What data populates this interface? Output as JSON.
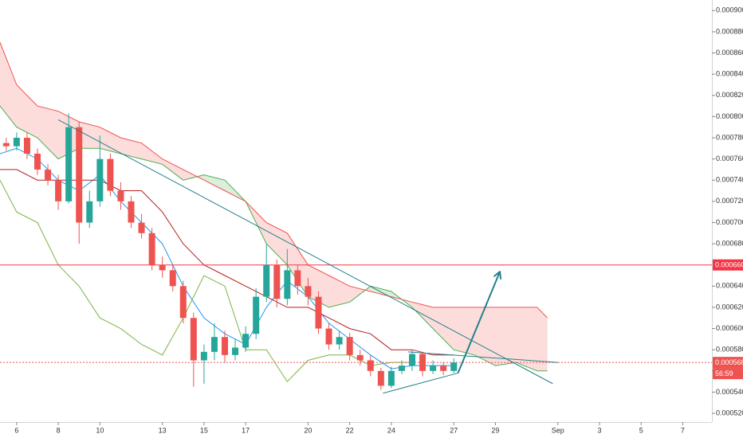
{
  "chart_data": {
    "type": "candlestick",
    "up_color": "#26a69a",
    "down_color": "#ef5350",
    "xlim": [
      5.2,
      39.4
    ],
    "xticks": [
      6,
      8,
      10,
      13,
      15,
      17,
      20,
      22,
      24,
      27,
      29,
      {
        "value": 32,
        "label": "Sep"
      },
      {
        "value": 34,
        "label": "3"
      },
      {
        "value": 36,
        "label": "5"
      },
      {
        "value": 38,
        "label": "7"
      }
    ],
    "ylim": [
      0.000514,
      0.00091
    ],
    "yticks": [
      {
        "value": 0.00052,
        "label": "0.000520"
      },
      {
        "value": 0.00054,
        "label": "0.000540"
      },
      {
        "value": 0.00056,
        "label": "0.000560"
      },
      {
        "value": 0.00058,
        "label": "0.000580"
      },
      {
        "value": 0.0006,
        "label": "0.000600"
      },
      {
        "value": 0.00062,
        "label": "0.000620"
      },
      {
        "value": 0.00064,
        "label": "0.000640"
      },
      {
        "value": 0.00068,
        "label": "0.000680"
      },
      {
        "value": 0.0007,
        "label": "0.000700"
      },
      {
        "value": 0.00072,
        "label": "0.000720"
      },
      {
        "value": 0.00074,
        "label": "0.000740"
      },
      {
        "value": 0.00076,
        "label": "0.000760"
      },
      {
        "value": 0.00078,
        "label": "0.000780"
      },
      {
        "value": 0.0008,
        "label": "0.000800"
      },
      {
        "value": 0.00082,
        "label": "0.000820"
      },
      {
        "value": 0.00084,
        "label": "0.000840"
      },
      {
        "value": 0.00086,
        "label": "0.000860"
      },
      {
        "value": 0.00088,
        "label": "0.000880"
      },
      {
        "value": 0.0009,
        "label": "0.000900"
      }
    ],
    "grid": false,
    "candles": {
      "x": [
        5.5,
        6,
        6.5,
        7,
        7.5,
        8,
        8.5,
        9,
        9.5,
        10,
        10.5,
        11,
        11.5,
        12,
        12.5,
        13,
        13.5,
        14,
        14.5,
        15,
        15.5,
        16,
        16.5,
        17,
        17.5,
        18,
        18.5,
        19,
        19.5,
        20,
        20.5,
        21,
        21.5,
        22,
        22.5,
        23,
        23.5,
        24,
        24.5,
        25,
        25.5,
        26,
        26.5,
        27
      ],
      "open": [
        0.000775,
        0.000772,
        0.00078,
        0.000765,
        0.00075,
        0.00074,
        0.00072,
        0.00079,
        0.0007,
        0.00072,
        0.00076,
        0.00073,
        0.00072,
        0.0007,
        0.00069,
        0.00066,
        0.000655,
        0.00064,
        0.00061,
        0.00057,
        0.000578,
        0.000592,
        0.000575,
        0.000582,
        0.000595,
        0.00063,
        0.00066,
        0.000628,
        0.000655,
        0.00064,
        0.00063,
        0.0006,
        0.000585,
        0.000592,
        0.000575,
        0.00057,
        0.00056,
        0.000546,
        0.00056,
        0.000565,
        0.000576,
        0.00056,
        0.000565,
        0.00056
      ],
      "high": [
        0.00078,
        0.000785,
        0.000785,
        0.00077,
        0.000755,
        0.000745,
        0.000803,
        0.000795,
        0.00073,
        0.000782,
        0.000765,
        0.000738,
        0.000725,
        0.000708,
        0.000695,
        0.000668,
        0.00066,
        0.000645,
        0.000615,
        0.000585,
        0.000605,
        0.000598,
        0.00059,
        0.000602,
        0.000638,
        0.00068,
        0.000665,
        0.000675,
        0.00066,
        0.000648,
        0.000635,
        0.000605,
        0.000598,
        0.000596,
        0.00058,
        0.000575,
        0.000563,
        0.000564,
        0.00057,
        0.00058,
        0.000578,
        0.00057,
        0.000568,
        0.000572
      ],
      "low": [
        0.000768,
        0.000768,
        0.00076,
        0.000745,
        0.000735,
        0.000712,
        0.000718,
        0.00068,
        0.000695,
        0.000715,
        0.000725,
        0.000712,
        0.000695,
        0.000685,
        0.000655,
        0.000648,
        0.000635,
        0.000605,
        0.000545,
        0.000548,
        0.00057,
        0.000568,
        0.00057,
        0.000578,
        0.00059,
        0.000625,
        0.00062,
        0.000622,
        0.000632,
        0.000622,
        0.000595,
        0.00058,
        0.00058,
        0.00057,
        0.000565,
        0.000555,
        0.000542,
        0.000544,
        0.000557,
        0.00056,
        0.000555,
        0.000557,
        0.000556,
        0.000558
      ],
      "close": [
        0.000772,
        0.00078,
        0.000765,
        0.00075,
        0.00074,
        0.00072,
        0.00079,
        0.0007,
        0.00072,
        0.00076,
        0.00073,
        0.00072,
        0.0007,
        0.00069,
        0.00066,
        0.000655,
        0.00064,
        0.00061,
        0.00057,
        0.000578,
        0.000592,
        0.000575,
        0.000582,
        0.000595,
        0.00063,
        0.00066,
        0.000628,
        0.000655,
        0.00064,
        0.00063,
        0.0006,
        0.000585,
        0.000592,
        0.000575,
        0.00057,
        0.00056,
        0.000546,
        0.00056,
        0.000565,
        0.000576,
        0.00056,
        0.000565,
        0.00056,
        0.000568
      ]
    },
    "cloud": {
      "x": [
        5.2,
        6,
        7,
        8,
        9,
        10,
        11,
        12,
        13,
        14,
        15,
        16,
        17,
        18,
        19,
        20,
        21,
        22,
        23,
        24,
        25,
        26,
        27,
        28,
        29,
        30,
        31,
        31.5
      ],
      "span_a": [
        0.00081,
        0.00079,
        0.00078,
        0.00076,
        0.00077,
        0.00077,
        0.000765,
        0.00076,
        0.000755,
        0.00074,
        0.000745,
        0.00074,
        0.00072,
        0.00068,
        0.00066,
        0.00063,
        0.00062,
        0.000625,
        0.00064,
        0.000635,
        0.00062,
        0.0006,
        0.00058,
        0.000575,
        0.000565,
        0.000568,
        0.00056,
        0.00056
      ],
      "span_b": [
        0.00087,
        0.00083,
        0.00081,
        0.000805,
        0.000795,
        0.00079,
        0.00078,
        0.000775,
        0.00076,
        0.00075,
        0.00074,
        0.00073,
        0.00072,
        0.0007,
        0.00069,
        0.00066,
        0.00065,
        0.00064,
        0.000635,
        0.00063,
        0.000625,
        0.00062,
        0.00062,
        0.00062,
        0.00062,
        0.00062,
        0.00062,
        0.00061
      ],
      "color_a": "#4caf50",
      "color_b": "#ef5350"
    },
    "series": [
      {
        "color": "#2196f3",
        "x": [
          5.2,
          6,
          7,
          8,
          9,
          10,
          11,
          12,
          13,
          14,
          15,
          16,
          17,
          18,
          19,
          20,
          21,
          22,
          23,
          24,
          25,
          26,
          27
        ],
        "values": [
          0.000765,
          0.00077,
          0.00076,
          0.00074,
          0.00073,
          0.000745,
          0.00072,
          0.0007,
          0.00068,
          0.00064,
          0.00061,
          0.000595,
          0.000585,
          0.00062,
          0.000645,
          0.00063,
          0.000605,
          0.00059,
          0.000575,
          0.000562,
          0.000565,
          0.000565,
          0.000565
        ]
      },
      {
        "color": "#b71c1c",
        "x": [
          5.2,
          6,
          7,
          8,
          9,
          10,
          11,
          12,
          13,
          14,
          15,
          16,
          17,
          18,
          19,
          20,
          21,
          22,
          23,
          24,
          25,
          26,
          27
        ],
        "values": [
          0.00075,
          0.00075,
          0.00074,
          0.00074,
          0.00074,
          0.00074,
          0.00073,
          0.00073,
          0.00071,
          0.00068,
          0.00066,
          0.00065,
          0.00064,
          0.00063,
          0.00062,
          0.00062,
          0.00061,
          0.0006,
          0.000595,
          0.00058,
          0.00058,
          0.000575,
          0.000575
        ]
      },
      {
        "color": "#7cb342",
        "x": [
          5.2,
          6,
          7,
          8,
          9,
          10,
          11,
          12,
          13,
          14,
          15,
          16,
          17,
          18,
          19,
          20,
          21,
          22,
          23,
          24,
          25
        ],
        "values": [
          0.00074,
          0.00071,
          0.0007,
          0.00066,
          0.00064,
          0.00061,
          0.0006,
          0.000585,
          0.000575,
          0.00061,
          0.00065,
          0.00064,
          0.00058,
          0.00058,
          0.00055,
          0.00057,
          0.000575,
          0.000575,
          0.000565,
          0.000568,
          0.000568
        ]
      }
    ],
    "drawings": [
      {
        "color": "#26808a",
        "x": [
          8,
          31.75
        ],
        "values": [
          0.000797,
          0.000548
        ]
      },
      {
        "color": "#26808a",
        "x": [
          23.6,
          27.2
        ],
        "values": [
          0.000539,
          0.000558
        ]
      },
      {
        "color": "#26808a",
        "x": [
          24.8,
          32
        ],
        "values": [
          0.000578,
          0.000568
        ]
      },
      {
        "color": "#26808a",
        "x": [
          27.2,
          29.2
        ],
        "values": [
          0.000558,
          0.000653
        ],
        "arrow": true
      }
    ],
    "hlines": [
      {
        "value": 0.00066,
        "label": "0.000660",
        "color": "#f23645",
        "dash": false
      },
      {
        "value": 0.000568,
        "label": "0.000568",
        "color": "#ef5350",
        "dash": true,
        "countdown": "56:59"
      }
    ]
  }
}
